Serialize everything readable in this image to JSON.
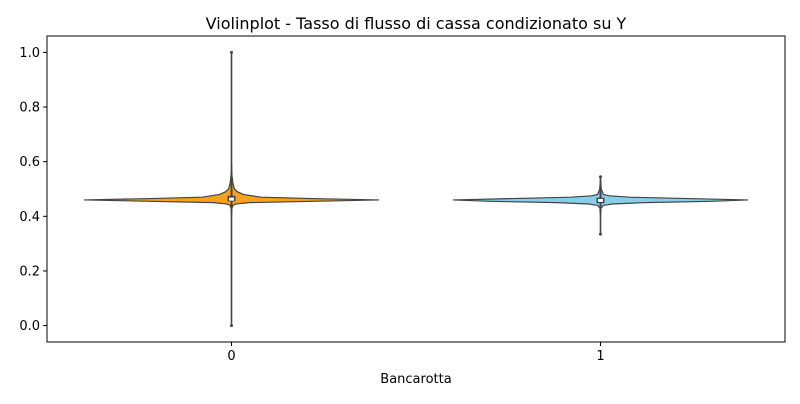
{
  "chart_data": {
    "type": "violin",
    "title": "Violinplot - Tasso di flusso di cassa condizionato su Y",
    "xlabel": "Bancarotta",
    "ylabel": "",
    "categories": [
      "0",
      "1"
    ],
    "ylim": [
      -0.06,
      1.06
    ],
    "yticks": [
      0.0,
      0.2,
      0.4,
      0.6,
      0.8,
      1.0
    ],
    "ytick_labels": [
      "0.0",
      "0.2",
      "0.4",
      "0.6",
      "0.8",
      "1.0"
    ],
    "grid": false,
    "legend": "none",
    "series": [
      {
        "category": "0",
        "color": "#f5a31a",
        "min": 0.0,
        "max": 1.0,
        "q1": 0.455,
        "median": 0.463,
        "q3": 0.475,
        "whisker_low": 0.43,
        "whisker_high": 0.52,
        "density": [
          [
            0.0,
            0.0
          ],
          [
            0.4,
            0.0
          ],
          [
            0.43,
            0.003
          ],
          [
            0.44,
            0.01
          ],
          [
            0.445,
            0.03
          ],
          [
            0.45,
            0.12
          ],
          [
            0.455,
            0.55
          ],
          [
            0.46,
            1.0
          ],
          [
            0.465,
            0.55
          ],
          [
            0.47,
            0.2
          ],
          [
            0.48,
            0.08
          ],
          [
            0.49,
            0.04
          ],
          [
            0.5,
            0.02
          ],
          [
            0.52,
            0.01
          ],
          [
            0.55,
            0.003
          ],
          [
            0.6,
            0.0
          ],
          [
            1.0,
            0.0
          ]
        ]
      },
      {
        "category": "1",
        "color": "#87ceeb",
        "min": 0.335,
        "max": 0.545,
        "q1": 0.448,
        "median": 0.458,
        "q3": 0.468,
        "whisker_low": 0.43,
        "whisker_high": 0.49,
        "density": [
          [
            0.335,
            0.0
          ],
          [
            0.4,
            0.0
          ],
          [
            0.43,
            0.004
          ],
          [
            0.44,
            0.02
          ],
          [
            0.445,
            0.08
          ],
          [
            0.45,
            0.3
          ],
          [
            0.455,
            0.75
          ],
          [
            0.46,
            1.0
          ],
          [
            0.465,
            0.6
          ],
          [
            0.47,
            0.2
          ],
          [
            0.475,
            0.06
          ],
          [
            0.48,
            0.02
          ],
          [
            0.5,
            0.005
          ],
          [
            0.545,
            0.0
          ]
        ]
      }
    ]
  }
}
